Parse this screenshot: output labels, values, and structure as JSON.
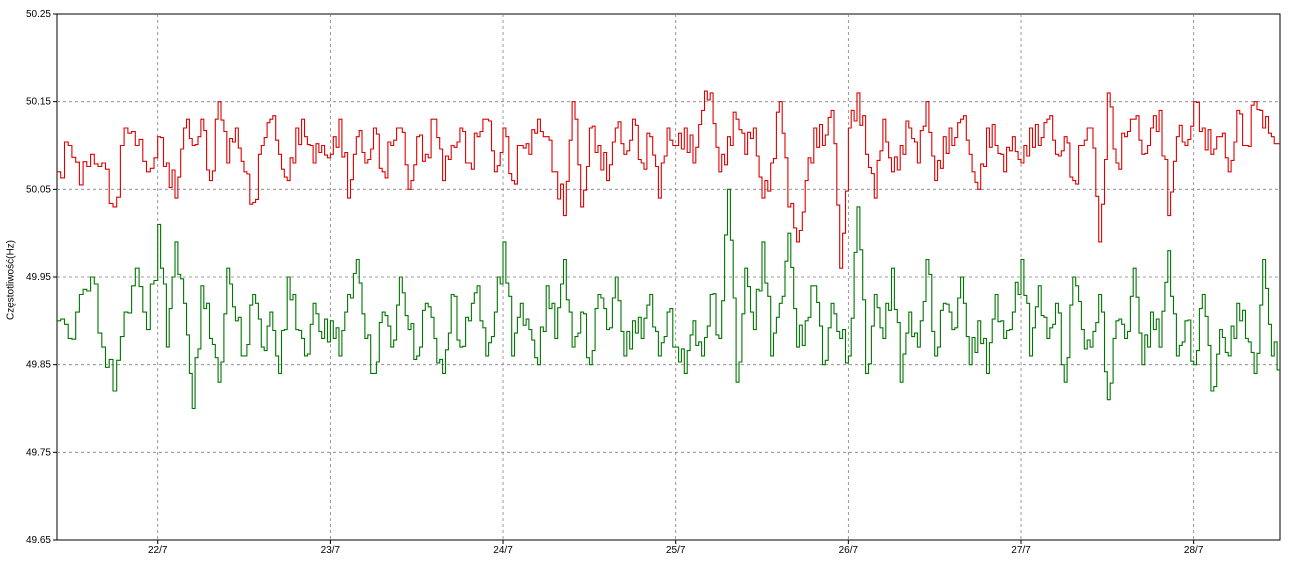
{
  "chart_data": {
    "type": "line",
    "ylabel": "Częstotliwość(Hz)",
    "xlabel": "",
    "title": "",
    "ylim": [
      49.65,
      50.25
    ],
    "yticks": [
      "50.25",
      "50.15",
      "50.05",
      "49.95",
      "49.85",
      "49.75",
      "49.65"
    ],
    "xlim": [
      "2021-07-21T10:00",
      "2021-07-28T12:00"
    ],
    "xticks": [
      "22/7",
      "23/7",
      "24/7",
      "25/7",
      "26/7",
      "27/7",
      "28/7"
    ],
    "grid": true,
    "line_style": "step",
    "series": [
      {
        "color": "#dd0000",
        "daily_points": {
          "21/7": [
            50.07,
            50.1,
            50.055,
            50.09,
            50.08,
            50.03,
            50.12,
            50.1,
            50.07
          ],
          "22/7": [
            50.11,
            50.08,
            50.04,
            50.12,
            50.1,
            50.13,
            50.06,
            50.15,
            50.08,
            50.12,
            50.07,
            50.035,
            50.1,
            50.13,
            50.09,
            50.06,
            50.12,
            50.11,
            50.08,
            50.1
          ],
          "23/7": [
            50.09,
            50.13,
            50.04,
            50.11,
            50.08,
            50.12,
            50.07,
            50.1,
            50.12,
            50.05,
            50.11,
            50.09,
            50.13,
            50.06,
            50.1,
            50.12,
            50.08,
            50.11,
            50.13,
            50.07
          ],
          "24/7": [
            50.12,
            50.06,
            50.1,
            50.09,
            50.13,
            50.11,
            50.07,
            50.02,
            50.15,
            50.03,
            50.12,
            50.1,
            50.06,
            50.12,
            50.09,
            50.13,
            50.08,
            50.11,
            50.04,
            50.12
          ],
          "25/7": [
            50.1,
            50.12,
            50.08,
            50.14,
            50.16,
            50.07,
            50.11,
            50.13,
            50.09,
            50.12,
            50.04,
            50.08,
            50.15,
            50.03,
            49.99,
            50.06,
            50.12,
            50.1,
            50.14,
            49.96
          ],
          "26/7": [
            50.12,
            50.16,
            50.09,
            50.04,
            50.13,
            50.07,
            50.1,
            50.12,
            50.08,
            50.15,
            50.06,
            50.11,
            50.1,
            50.13,
            50.09,
            50.05,
            50.12,
            50.1,
            50.07,
            50.11
          ],
          "27/7": [
            50.08,
            50.12,
            50.1,
            50.13,
            50.09,
            50.11,
            50.06,
            50.1,
            50.12,
            49.99,
            50.16,
            50.08,
            50.11,
            50.13,
            50.09,
            50.12,
            50.14,
            50.02,
            50.11,
            50.1
          ],
          "28/7": [
            50.15,
            50.12,
            50.09,
            50.11,
            50.07,
            50.14,
            50.1,
            50.15,
            50.12,
            50.11
          ]
        }
      },
      {
        "color": "#007700",
        "daily_points": {
          "21/7": [
            49.9,
            49.88,
            49.93,
            49.95,
            49.87,
            49.82,
            49.91,
            49.96,
            49.89
          ],
          "22/7": [
            50.01,
            49.87,
            49.99,
            49.92,
            49.8,
            49.94,
            49.88,
            49.83,
            49.96,
            49.9,
            49.86,
            49.93,
            49.87,
            49.91,
            49.84,
            49.95,
            49.89,
            49.86,
            49.92,
            49.88
          ],
          "23/7": [
            49.9,
            49.86,
            49.93,
            49.97,
            49.88,
            49.84,
            49.91,
            49.87,
            49.95,
            49.89,
            49.86,
            49.92,
            49.88,
            49.84,
            49.93,
            49.87,
            49.9,
            49.94,
            49.86,
            49.91
          ],
          "24/7": [
            49.99,
            49.86,
            49.92,
            49.89,
            49.85,
            49.94,
            49.88,
            49.97,
            49.87,
            49.91,
            49.85,
            49.93,
            49.89,
            49.95,
            49.86,
            49.9,
            49.88,
            49.93,
            49.86,
            49.91
          ],
          "25/7": [
            49.87,
            49.84,
            49.9,
            49.86,
            49.93,
            49.88,
            50.05,
            49.83,
            49.96,
            49.89,
            49.99,
            49.86,
            49.92,
            50.0,
            49.87,
            49.9,
            49.94,
            49.85,
            49.92,
            49.88
          ],
          "26/7": [
            49.86,
            50.03,
            49.84,
            49.93,
            49.88,
            49.96,
            49.83,
            49.91,
            49.87,
            49.97,
            49.86,
            49.92,
            49.89,
            49.95,
            49.85,
            49.9,
            49.84,
            49.93,
            49.88,
            49.91
          ],
          "27/7": [
            49.97,
            49.86,
            49.94,
            49.88,
            49.92,
            49.83,
            49.95,
            49.89,
            49.87,
            49.93,
            49.81,
            49.9,
            49.88,
            49.96,
            49.85,
            49.91,
            49.87,
            49.98,
            49.86,
            49.9
          ],
          "28/7": [
            49.85,
            49.93,
            49.82,
            49.89,
            49.86,
            49.92,
            49.88,
            49.84,
            49.97,
            49.86
          ]
        }
      }
    ]
  }
}
